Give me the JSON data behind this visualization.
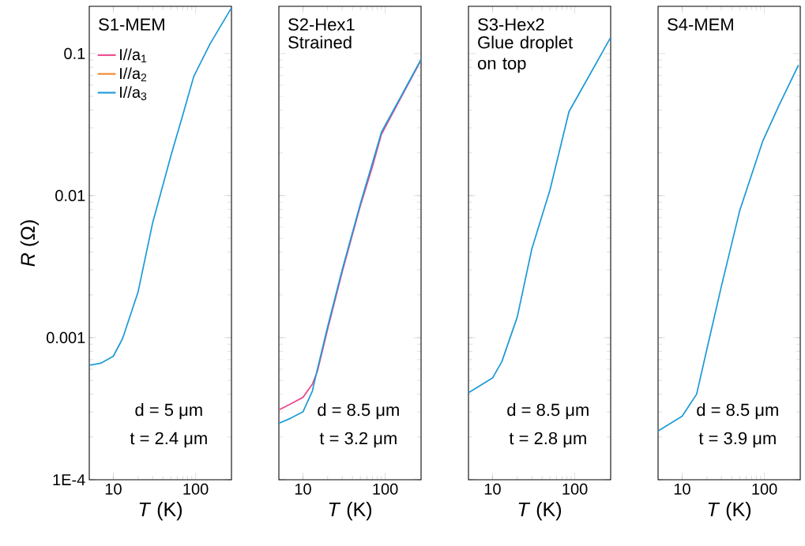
{
  "chart_data": [
    {
      "type": "line",
      "title": "S1-MEM",
      "xlabel": "*T* (K)",
      "ylabel": "*R* (Ω)",
      "log": "xy",
      "xlim": [
        5.1,
        273
      ],
      "ylim": [
        0.0001,
        0.215
      ],
      "xticks": [
        10,
        100
      ],
      "yticks": [
        {
          "value": 0.0001,
          "label": "1E-4"
        },
        0.001,
        0.01,
        0.1
      ],
      "legend": "top left",
      "line_style": "solid",
      "marker": "none",
      "annotations": [
        "d = 5 μm",
        "t = 2.4 μm"
      ],
      "x": [
        5.1,
        7,
        10,
        13,
        20,
        30,
        50,
        70,
        95,
        150,
        273
      ],
      "series": [
        {
          "name": "I//a$_{1}$",
          "color": "#ec4a8f",
          "values": [
            null,
            null,
            null,
            null,
            null,
            null,
            null,
            null,
            null,
            null,
            null
          ]
        },
        {
          "name": "I//a$_{2}$",
          "color": "#f28a30",
          "values": [
            null,
            null,
            null,
            null,
            null,
            null,
            null,
            null,
            null,
            null,
            null
          ]
        },
        {
          "name": "I//a$_{3}$",
          "color": "#1f9ad6",
          "values": [
            0.00064,
            0.00066,
            0.00074,
            0.00099,
            0.0021,
            0.0064,
            0.019,
            0.037,
            0.069,
            0.117,
            0.21
          ]
        }
      ]
    },
    {
      "type": "line",
      "title": "S2-Hex1",
      "subtitle": "Strained",
      "xlabel": "*T* (K)",
      "log": "xy",
      "xlim": [
        5.1,
        273
      ],
      "ylim": [
        0.0001,
        0.215
      ],
      "xticks": [
        10,
        100
      ],
      "yticks": [
        0.0001,
        0.001,
        0.01,
        0.1
      ],
      "tick_labels": "x",
      "line_style": "solid",
      "marker": "none",
      "annotations": [
        "d = 8.5 μm",
        "t = 3.2 μm"
      ],
      "x": [
        5.1,
        7,
        10,
        13,
        15,
        20,
        30,
        50,
        70,
        90,
        150,
        273
      ],
      "series": [
        {
          "color": "#ec4a8f",
          "values": [
            0.00031,
            0.00034,
            0.00038,
            0.00047,
            0.00058,
            0.00115,
            0.0029,
            0.0085,
            0.016,
            0.027,
            0.047,
            0.09
          ]
        },
        {
          "color": "#f28a30",
          "values": [
            null,
            null,
            null,
            null,
            null,
            null,
            null,
            null,
            null,
            null,
            null,
            null
          ]
        },
        {
          "color": "#1f9ad6",
          "values": [
            0.00025,
            0.00027,
            0.0003,
            0.00042,
            0.0006,
            0.0012,
            0.003,
            0.0088,
            0.017,
            0.028,
            0.048,
            0.091
          ]
        }
      ]
    },
    {
      "type": "line",
      "title": "S3-Hex2",
      "subtitle": "Glue droplet on top",
      "xlabel": "*T* (K)",
      "log": "xy",
      "xlim": [
        5.1,
        273
      ],
      "ylim": [
        0.0001,
        0.215
      ],
      "xticks": [
        10,
        100
      ],
      "yticks": [
        0.0001,
        0.001,
        0.01,
        0.1
      ],
      "tick_labels": "x",
      "line_style": "solid",
      "marker": "none",
      "annotations": [
        "d = 8.5 μm",
        "t = 2.8 μm"
      ],
      "x": [
        5.1,
        10,
        13,
        20,
        30,
        50,
        85,
        150,
        273
      ],
      "series": [
        {
          "color": "#ec4a8f",
          "values": [
            null,
            null,
            null,
            null,
            null,
            null,
            null,
            null,
            null
          ]
        },
        {
          "color": "#f28a30",
          "values": [
            null,
            null,
            null,
            null,
            null,
            null,
            null,
            null,
            null
          ]
        },
        {
          "color": "#1f9ad6",
          "values": [
            0.00041,
            0.00052,
            0.00068,
            0.0014,
            0.0042,
            0.011,
            0.039,
            0.07,
            0.13
          ]
        }
      ]
    },
    {
      "type": "line",
      "title": "S4-MEM",
      "xlabel": "*T* (K)",
      "log": "xy",
      "xlim": [
        5.1,
        273
      ],
      "ylim": [
        0.0001,
        0.215
      ],
      "xticks": [
        10,
        100
      ],
      "yticks": [
        0.0001,
        0.001,
        0.01,
        0.1
      ],
      "tick_labels": "x",
      "line_style": "solid",
      "marker": "none",
      "annotations": [
        "d = 8.5 μm",
        "t = 3.9 μm"
      ],
      "x": [
        5.1,
        10,
        15,
        20,
        30,
        50,
        95,
        150,
        260
      ],
      "series": [
        {
          "color": "#ec4a8f",
          "values": [
            null,
            null,
            null,
            null,
            null,
            null,
            null,
            null,
            null
          ]
        },
        {
          "color": "#f28a30",
          "values": [
            null,
            null,
            null,
            null,
            null,
            null,
            null,
            null,
            null
          ]
        },
        {
          "color": "#1f9ad6",
          "values": [
            0.00022,
            0.00028,
            0.0004,
            0.00083,
            0.0023,
            0.0078,
            0.024,
            0.043,
            0.083
          ]
        }
      ]
    }
  ]
}
